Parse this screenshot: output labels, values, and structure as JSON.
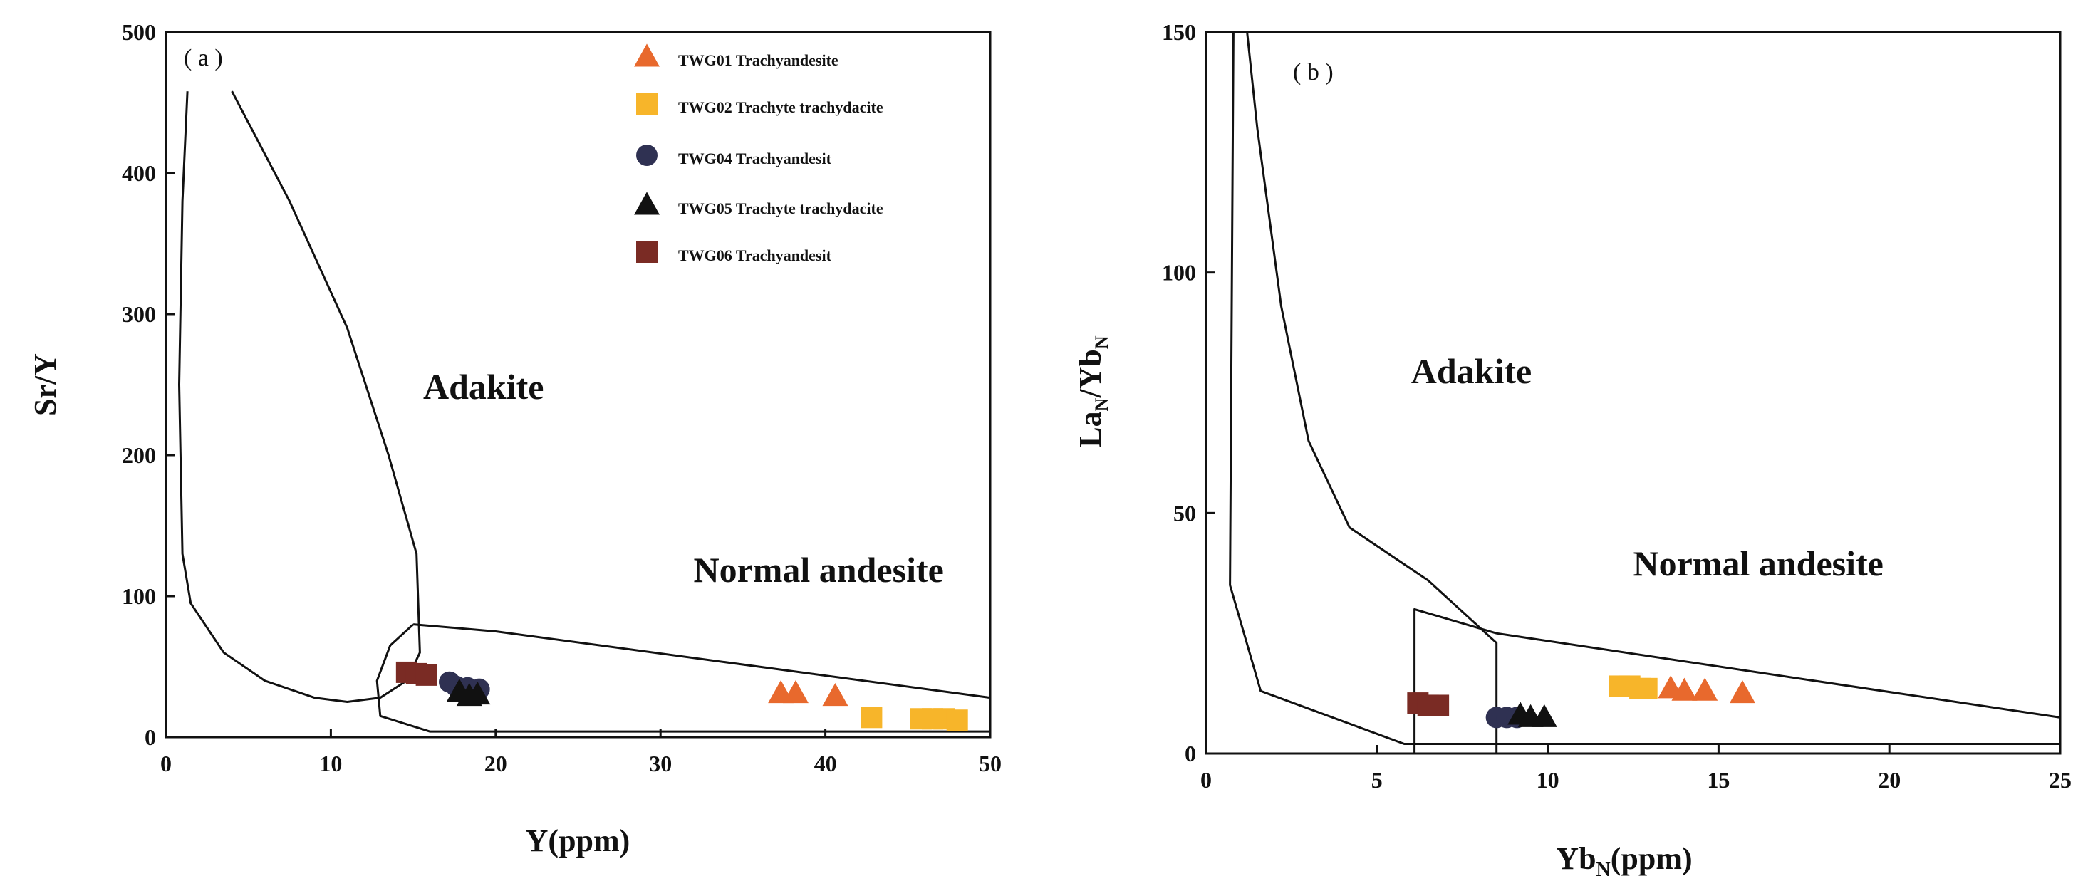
{
  "colors": {
    "TWG01": "#e8692d",
    "TWG02": "#f7b52a",
    "TWG04": "#2f3152",
    "TWG05": "#111111",
    "TWG06": "#7a2b24"
  },
  "legend": [
    {
      "key": "TWG01",
      "label": "TWG01 Trachyandesite",
      "marker": "triangle"
    },
    {
      "key": "TWG02",
      "label": "TWG02 Trachyte trachydacite",
      "marker": "square"
    },
    {
      "key": "TWG04",
      "label": "TWG04 Trachyandesit",
      "marker": "circle"
    },
    {
      "key": "TWG05",
      "label": "TWG05 Trachyte trachydacite",
      "marker": "triangle"
    },
    {
      "key": "TWG06",
      "label": "TWG06 Trachyandesit",
      "marker": "square"
    }
  ],
  "chart_data": [
    {
      "type": "scatter",
      "panel": "( a )",
      "xlabel": "Y(ppm)",
      "ylabel": "Sr/Y",
      "xlim": [
        0,
        50
      ],
      "ylim": [
        0,
        500
      ],
      "xticks": [
        0,
        10,
        20,
        30,
        40,
        50
      ],
      "yticks": [
        0,
        100,
        200,
        300,
        400,
        500
      ],
      "fields": [
        {
          "name": "Adakite",
          "label_at": [
            15.6,
            240
          ],
          "points": [
            [
              1.3,
              458
            ],
            [
              1.0,
              380
            ],
            [
              0.8,
              250
            ],
            [
              1.0,
              130
            ],
            [
              1.5,
              95
            ],
            [
              3.5,
              60
            ],
            [
              6,
              40
            ],
            [
              9,
              28
            ],
            [
              11,
              25
            ],
            [
              13,
              28
            ],
            [
              14.6,
              40
            ],
            [
              15.4,
              60
            ],
            [
              15.2,
              130
            ],
            [
              13.5,
              200
            ],
            [
              11,
              290
            ],
            [
              7.5,
              380
            ],
            [
              4,
              458
            ]
          ]
        },
        {
          "name": "Normal andesite",
          "label_at": [
            32,
            110
          ],
          "points": [
            [
              15.0,
              80
            ],
            [
              20.0,
              75
            ],
            [
              50,
              28
            ],
            [
              50,
              4
            ],
            [
              16,
              4
            ],
            [
              13,
              15
            ],
            [
              12.8,
              40
            ],
            [
              13.6,
              65
            ],
            [
              15.0,
              80
            ]
          ]
        }
      ],
      "series": [
        {
          "name": "TWG01",
          "marker": "triangle",
          "points": [
            [
              37.3,
              31
            ],
            [
              38.2,
              31
            ],
            [
              40.6,
              29
            ]
          ]
        },
        {
          "name": "TWG02",
          "marker": "square",
          "points": [
            [
              42.8,
              14
            ],
            [
              45.8,
              13
            ],
            [
              46.5,
              13
            ],
            [
              47.2,
              13
            ],
            [
              48.0,
              12
            ]
          ]
        },
        {
          "name": "TWG04",
          "marker": "circle",
          "points": [
            [
              17.2,
              39
            ],
            [
              17.6,
              36
            ],
            [
              18.3,
              35
            ],
            [
              19.0,
              34
            ]
          ]
        },
        {
          "name": "TWG05",
          "marker": "triangle",
          "points": [
            [
              17.8,
              32
            ],
            [
              18.4,
              29
            ],
            [
              18.9,
              30
            ]
          ]
        },
        {
          "name": "TWG06",
          "marker": "square",
          "points": [
            [
              14.6,
              46
            ],
            [
              15.2,
              45
            ],
            [
              15.8,
              44
            ]
          ]
        }
      ]
    },
    {
      "type": "scatter",
      "panel": "( b )",
      "xlabel": "Yb",
      "xlabel_sub": "N",
      "xlabel_suffix": "(ppm)",
      "ylabel_parts": [
        "La",
        "N",
        "/Yb",
        "N"
      ],
      "xlim": [
        0,
        25
      ],
      "ylim": [
        0,
        150
      ],
      "xticks": [
        0,
        5,
        10,
        15,
        20,
        25
      ],
      "yticks": [
        0,
        50,
        100,
        150
      ],
      "fields": [
        {
          "name": "Adakite",
          "label_at": [
            6.0,
            77
          ],
          "points": [
            [
              1.2,
              150
            ],
            [
              1.5,
              130
            ],
            [
              2.2,
              93
            ],
            [
              3.0,
              65
            ],
            [
              4.2,
              47
            ],
            [
              6.5,
              36
            ],
            [
              8.5,
              23
            ],
            [
              8.5,
              0
            ]
          ]
        },
        {
          "name": "Normal andesite",
          "label_at": [
            12.5,
            37
          ],
          "points": [
            [
              0.8,
              150
            ],
            [
              0.7,
              35
            ],
            [
              1.6,
              13
            ],
            [
              5.8,
              2
            ],
            [
              25,
              2
            ]
          ]
        },
        {
          "name": "box",
          "points": [
            [
              6.1,
              0
            ],
            [
              6.1,
              30
            ],
            [
              8.5,
              25
            ],
            [
              25,
              7.5
            ]
          ]
        }
      ],
      "series": [
        {
          "name": "TWG01",
          "marker": "triangle",
          "points": [
            [
              13.6,
              13.5
            ],
            [
              14.0,
              13
            ],
            [
              14.6,
              13
            ],
            [
              15.7,
              12.5
            ]
          ]
        },
        {
          "name": "TWG02",
          "marker": "square",
          "points": [
            [
              12.1,
              14
            ],
            [
              12.4,
              14
            ],
            [
              12.7,
              13.5
            ],
            [
              12.9,
              13.5
            ]
          ]
        },
        {
          "name": "TWG04",
          "marker": "circle",
          "points": [
            [
              8.5,
              7.5
            ],
            [
              8.8,
              7.5
            ],
            [
              9.1,
              7.5
            ]
          ]
        },
        {
          "name": "TWG05",
          "marker": "triangle",
          "points": [
            [
              9.2,
              8
            ],
            [
              9.5,
              7.5
            ],
            [
              9.9,
              7.5
            ]
          ]
        },
        {
          "name": "TWG06",
          "marker": "square",
          "points": [
            [
              6.2,
              10.5
            ],
            [
              6.5,
              10
            ],
            [
              6.8,
              10
            ]
          ]
        }
      ]
    }
  ]
}
